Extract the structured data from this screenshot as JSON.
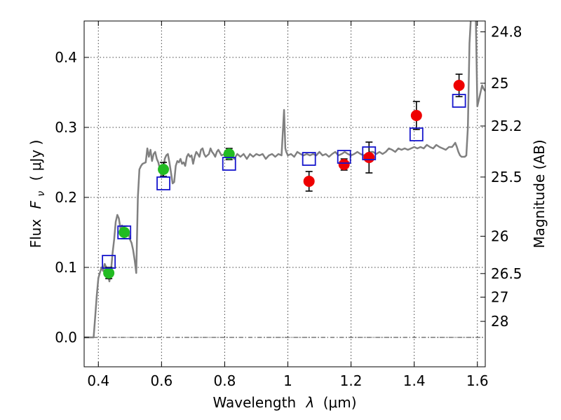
{
  "chart_data": {
    "type": "scatter",
    "xlabel_main": "Wavelength",
    "xlabel_symbol": "λ",
    "xlabel_unit": "(μm)",
    "ylabel_main": "Flux",
    "ylabel_symbol": "F",
    "ylabel_sub": "ν",
    "ylabel_unit": "( μJy )",
    "y2label": "Magnitude (AB)",
    "xlim": [
      0.355,
      1.625
    ],
    "ylim": [
      -0.042,
      0.452
    ],
    "xticks": [
      0.4,
      0.6,
      0.8,
      1.0,
      1.2,
      1.4,
      1.6
    ],
    "xtick_labels": [
      "0.4",
      "0.6",
      "0.8",
      "1",
      "1.2",
      "1.4",
      "1.6"
    ],
    "yticks": [
      0.0,
      0.1,
      0.2,
      0.3,
      0.4
    ],
    "ytick_labels": [
      "0.0",
      "0.1",
      "0.2",
      "0.3",
      "0.4"
    ],
    "y2ticks": [
      {
        "label": "24.8",
        "mag": 24.8
      },
      {
        "label": "25",
        "mag": 25.0
      },
      {
        "label": "25.2",
        "mag": 25.2
      },
      {
        "label": "25.5",
        "mag": 25.5
      },
      {
        "label": "26",
        "mag": 26.0
      },
      {
        "label": "26.5",
        "mag": 26.5
      },
      {
        "label": "27",
        "mag": 27.0
      },
      {
        "label": "28",
        "mag": 28.0
      }
    ],
    "grid": true,
    "zero_line": true,
    "colors": {
      "model": "#808080",
      "green": "#22bb22",
      "red": "#ee0000",
      "box": "#1515cc",
      "errorbar": "#000000"
    },
    "series": [
      {
        "kind": "line",
        "points": [
          [
            0.355,
            0.0
          ],
          [
            0.36,
            0.0
          ],
          [
            0.37,
            0.0
          ],
          [
            0.38,
            0.0
          ],
          [
            0.385,
            0.0
          ],
          [
            0.39,
            0.03
          ],
          [
            0.395,
            0.06
          ],
          [
            0.4,
            0.085
          ],
          [
            0.41,
            0.1
          ],
          [
            0.415,
            0.095
          ],
          [
            0.42,
            0.105
          ],
          [
            0.425,
            0.1
          ],
          [
            0.43,
            0.09
          ],
          [
            0.435,
            0.08
          ],
          [
            0.44,
            0.095
          ],
          [
            0.445,
            0.12
          ],
          [
            0.45,
            0.14
          ],
          [
            0.455,
            0.165
          ],
          [
            0.46,
            0.175
          ],
          [
            0.465,
            0.17
          ],
          [
            0.47,
            0.155
          ],
          [
            0.475,
            0.16
          ],
          [
            0.48,
            0.148
          ],
          [
            0.485,
            0.15
          ],
          [
            0.49,
            0.145
          ],
          [
            0.495,
            0.15
          ],
          [
            0.5,
            0.14
          ],
          [
            0.505,
            0.135
          ],
          [
            0.51,
            0.125
          ],
          [
            0.515,
            0.11
          ],
          [
            0.52,
            0.092
          ],
          [
            0.525,
            0.2
          ],
          [
            0.53,
            0.24
          ],
          [
            0.535,
            0.245
          ],
          [
            0.54,
            0.248
          ],
          [
            0.55,
            0.25
          ],
          [
            0.555,
            0.27
          ],
          [
            0.56,
            0.258
          ],
          [
            0.565,
            0.268
          ],
          [
            0.57,
            0.252
          ],
          [
            0.575,
            0.262
          ],
          [
            0.58,
            0.265
          ],
          [
            0.585,
            0.255
          ],
          [
            0.59,
            0.25
          ],
          [
            0.595,
            0.24
          ],
          [
            0.6,
            0.23
          ],
          [
            0.605,
            0.232
          ],
          [
            0.61,
            0.255
          ],
          [
            0.615,
            0.26
          ],
          [
            0.62,
            0.262
          ],
          [
            0.625,
            0.25
          ],
          [
            0.63,
            0.235
          ],
          [
            0.635,
            0.22
          ],
          [
            0.64,
            0.222
          ],
          [
            0.645,
            0.245
          ],
          [
            0.65,
            0.252
          ],
          [
            0.655,
            0.25
          ],
          [
            0.66,
            0.255
          ],
          [
            0.665,
            0.248
          ],
          [
            0.67,
            0.25
          ],
          [
            0.675,
            0.245
          ],
          [
            0.68,
            0.258
          ],
          [
            0.685,
            0.262
          ],
          [
            0.69,
            0.258
          ],
          [
            0.695,
            0.26
          ],
          [
            0.7,
            0.248
          ],
          [
            0.705,
            0.258
          ],
          [
            0.71,
            0.265
          ],
          [
            0.715,
            0.262
          ],
          [
            0.72,
            0.258
          ],
          [
            0.725,
            0.268
          ],
          [
            0.73,
            0.27
          ],
          [
            0.735,
            0.262
          ],
          [
            0.74,
            0.258
          ],
          [
            0.75,
            0.262
          ],
          [
            0.755,
            0.27
          ],
          [
            0.76,
            0.265
          ],
          [
            0.765,
            0.262
          ],
          [
            0.77,
            0.258
          ],
          [
            0.775,
            0.265
          ],
          [
            0.78,
            0.268
          ],
          [
            0.79,
            0.26
          ],
          [
            0.8,
            0.262
          ],
          [
            0.81,
            0.26
          ],
          [
            0.82,
            0.262
          ],
          [
            0.83,
            0.255
          ],
          [
            0.84,
            0.262
          ],
          [
            0.85,
            0.258
          ],
          [
            0.86,
            0.262
          ],
          [
            0.87,
            0.255
          ],
          [
            0.88,
            0.262
          ],
          [
            0.89,
            0.258
          ],
          [
            0.9,
            0.262
          ],
          [
            0.91,
            0.26
          ],
          [
            0.92,
            0.262
          ],
          [
            0.93,
            0.255
          ],
          [
            0.94,
            0.26
          ],
          [
            0.95,
            0.262
          ],
          [
            0.96,
            0.258
          ],
          [
            0.97,
            0.262
          ],
          [
            0.98,
            0.26
          ],
          [
            0.985,
            0.3
          ],
          [
            0.988,
            0.325
          ],
          [
            0.992,
            0.27
          ],
          [
            0.995,
            0.265
          ],
          [
            1.0,
            0.26
          ],
          [
            1.01,
            0.262
          ],
          [
            1.02,
            0.258
          ],
          [
            1.03,
            0.265
          ],
          [
            1.04,
            0.262
          ],
          [
            1.05,
            0.26
          ],
          [
            1.06,
            0.262
          ],
          [
            1.07,
            0.26
          ],
          [
            1.08,
            0.262
          ],
          [
            1.09,
            0.26
          ],
          [
            1.1,
            0.265
          ],
          [
            1.11,
            0.26
          ],
          [
            1.12,
            0.262
          ],
          [
            1.13,
            0.258
          ],
          [
            1.14,
            0.262
          ],
          [
            1.15,
            0.265
          ],
          [
            1.16,
            0.26
          ],
          [
            1.17,
            0.262
          ],
          [
            1.18,
            0.265
          ],
          [
            1.19,
            0.262
          ],
          [
            1.2,
            0.26
          ],
          [
            1.21,
            0.262
          ],
          [
            1.22,
            0.265
          ],
          [
            1.23,
            0.262
          ],
          [
            1.24,
            0.26
          ],
          [
            1.25,
            0.262
          ],
          [
            1.26,
            0.265
          ],
          [
            1.27,
            0.265
          ],
          [
            1.28,
            0.262
          ],
          [
            1.29,
            0.265
          ],
          [
            1.3,
            0.262
          ],
          [
            1.31,
            0.265
          ],
          [
            1.32,
            0.27
          ],
          [
            1.33,
            0.268
          ],
          [
            1.34,
            0.265
          ],
          [
            1.35,
            0.27
          ],
          [
            1.36,
            0.268
          ],
          [
            1.37,
            0.27
          ],
          [
            1.38,
            0.268
          ],
          [
            1.39,
            0.27
          ],
          [
            1.4,
            0.272
          ],
          [
            1.41,
            0.27
          ],
          [
            1.42,
            0.272
          ],
          [
            1.43,
            0.27
          ],
          [
            1.44,
            0.275
          ],
          [
            1.45,
            0.272
          ],
          [
            1.46,
            0.27
          ],
          [
            1.47,
            0.275
          ],
          [
            1.48,
            0.272
          ],
          [
            1.49,
            0.27
          ],
          [
            1.5,
            0.268
          ],
          [
            1.51,
            0.272
          ],
          [
            1.52,
            0.272
          ],
          [
            1.525,
            0.275
          ],
          [
            1.53,
            0.278
          ],
          [
            1.535,
            0.272
          ],
          [
            1.54,
            0.265
          ],
          [
            1.545,
            0.26
          ],
          [
            1.55,
            0.258
          ],
          [
            1.56,
            0.258
          ],
          [
            1.565,
            0.26
          ],
          [
            1.57,
            0.3
          ],
          [
            1.575,
            0.42
          ],
          [
            1.58,
            0.46
          ],
          [
            1.585,
            0.46
          ],
          [
            1.59,
            0.46
          ],
          [
            1.595,
            0.46
          ],
          [
            1.6,
            0.33
          ],
          [
            1.605,
            0.34
          ],
          [
            1.61,
            0.35
          ],
          [
            1.615,
            0.36
          ],
          [
            1.62,
            0.355
          ],
          [
            1.625,
            0.352
          ]
        ]
      },
      {
        "kind": "scatter",
        "marker": "circle",
        "color_key": "green",
        "points": [
          {
            "x": 0.433,
            "y": 0.092,
            "err": 0.008
          },
          {
            "x": 0.482,
            "y": 0.15,
            "err": 0.009
          },
          {
            "x": 0.606,
            "y": 0.24,
            "err": 0.01
          },
          {
            "x": 0.814,
            "y": 0.262,
            "err": 0.008
          }
        ]
      },
      {
        "kind": "scatter",
        "marker": "circle",
        "color_key": "red",
        "points": [
          {
            "x": 1.067,
            "y": 0.223,
            "err": 0.014
          },
          {
            "x": 1.178,
            "y": 0.247,
            "err": 0.008
          },
          {
            "x": 1.257,
            "y": 0.257,
            "err": 0.022
          },
          {
            "x": 1.407,
            "y": 0.317,
            "err": 0.02
          },
          {
            "x": 1.542,
            "y": 0.36,
            "err": 0.016
          }
        ]
      },
      {
        "kind": "scatter",
        "marker": "square",
        "color_key": "box",
        "points": [
          {
            "x": 0.433,
            "y": 0.108
          },
          {
            "x": 0.482,
            "y": 0.15
          },
          {
            "x": 0.606,
            "y": 0.22
          },
          {
            "x": 0.814,
            "y": 0.248
          },
          {
            "x": 1.067,
            "y": 0.255
          },
          {
            "x": 1.178,
            "y": 0.258
          },
          {
            "x": 1.257,
            "y": 0.263
          },
          {
            "x": 1.407,
            "y": 0.29
          },
          {
            "x": 1.542,
            "y": 0.338
          }
        ]
      }
    ]
  }
}
